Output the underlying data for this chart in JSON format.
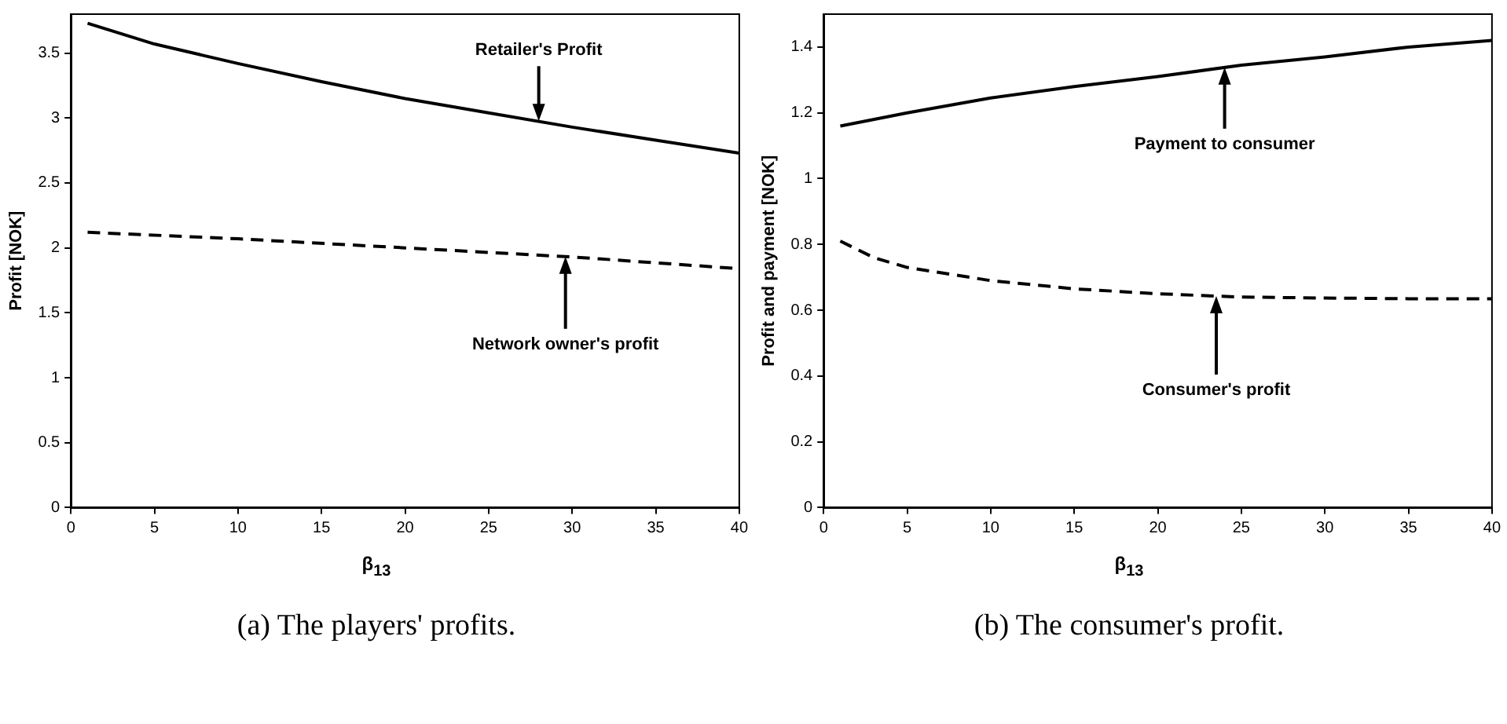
{
  "chart_data": [
    {
      "type": "line",
      "xlabel": "β$_{13}$",
      "ylabel": "Profit [NOK]",
      "xlim": [
        0,
        40
      ],
      "xticks": [
        0,
        5,
        10,
        15,
        20,
        25,
        30,
        35,
        40
      ],
      "ylim": [
        0,
        3.8
      ],
      "yticks": [
        0,
        0.5,
        1,
        1.5,
        2,
        2.5,
        3,
        3.5
      ],
      "series": [
        {
          "color": "#000000",
          "line_style": "solid",
          "x": [
            1,
            5,
            10,
            15,
            20,
            25,
            30,
            35,
            40
          ],
          "values": [
            3.73,
            3.57,
            3.42,
            3.28,
            3.15,
            3.04,
            2.93,
            2.83,
            2.73
          ]
        },
        {
          "color": "#000000",
          "line_style": "dashed",
          "x": [
            1,
            10,
            20,
            30,
            40
          ],
          "values": [
            2.12,
            2.07,
            2.0,
            1.93,
            1.84
          ]
        }
      ],
      "annotations": [
        {
          "text": "Retailer's Profit",
          "x": 28,
          "y": 2.976
        },
        {
          "text": "Network owner's profit",
          "x": 29.6,
          "y": 1.933
        },
        "(a) The players' profits."
      ]
    },
    {
      "type": "line",
      "xlabel": "β$_{13}$",
      "ylabel": "Profit and payment [NOK]",
      "xlim": [
        0,
        40
      ],
      "xticks": [
        0,
        5,
        10,
        15,
        20,
        25,
        30,
        35,
        40
      ],
      "ylim": [
        0,
        1.5
      ],
      "yticks": [
        0,
        0.2,
        0.4,
        0.6,
        0.8,
        1,
        1.2,
        1.4
      ],
      "series": [
        {
          "color": "#000000",
          "line_style": "solid",
          "x": [
            1,
            5,
            10,
            15,
            20,
            25,
            30,
            35,
            40
          ],
          "values": [
            1.16,
            1.2,
            1.245,
            1.28,
            1.31,
            1.345,
            1.37,
            1.4,
            1.42
          ]
        },
        {
          "color": "#000000",
          "line_style": "dashed",
          "x": [
            1,
            3,
            5,
            10,
            15,
            20,
            25,
            30,
            35,
            40
          ],
          "values": [
            0.81,
            0.76,
            0.73,
            0.69,
            0.665,
            0.65,
            0.64,
            0.637,
            0.635,
            0.635
          ]
        }
      ],
      "annotations": [
        {
          "text": "Payment to consumer",
          "x": 24,
          "y": 1.338
        },
        {
          "text": "Consumer's profit",
          "x": 23.5,
          "y": 0.643
        },
        "(b) The consumer's profit."
      ]
    }
  ]
}
